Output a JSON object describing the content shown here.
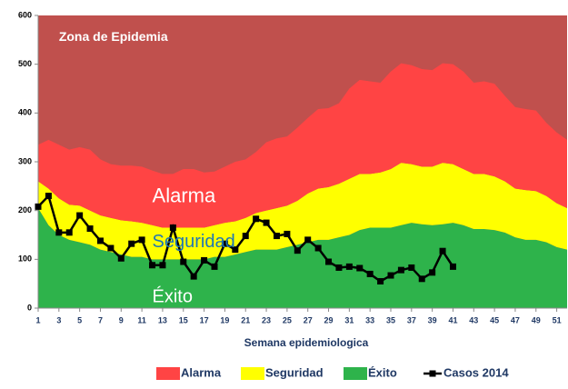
{
  "chart_data": {
    "type": "endemic-channel",
    "x_label": "Semana epidemiologica",
    "x": [
      1,
      2,
      3,
      4,
      5,
      6,
      7,
      8,
      9,
      10,
      11,
      12,
      13,
      14,
      15,
      16,
      17,
      18,
      19,
      20,
      21,
      22,
      23,
      24,
      25,
      26,
      27,
      28,
      29,
      30,
      31,
      32,
      33,
      34,
      35,
      36,
      37,
      38,
      39,
      40,
      41,
      42,
      43,
      44,
      45,
      46,
      47,
      48,
      49,
      50,
      51,
      52
    ],
    "xlim": [
      1,
      52
    ],
    "xticks": [
      1,
      3,
      5,
      7,
      9,
      11,
      13,
      15,
      17,
      19,
      21,
      23,
      25,
      27,
      29,
      31,
      33,
      35,
      37,
      39,
      41,
      43,
      45,
      47,
      49,
      51
    ],
    "ylim": [
      0,
      600
    ],
    "yticks": [
      0,
      100,
      200,
      300,
      400,
      500,
      600
    ],
    "plot_background": "#c0504d",
    "annotations": [
      "Zona de Epidemia",
      "Alarma",
      "Seguridad",
      "Éxito"
    ],
    "series": [
      {
        "name": "Éxito",
        "color": "#2eb34b",
        "kind": "area",
        "values": [
          205,
          170,
          150,
          140,
          135,
          130,
          120,
          115,
          110,
          105,
          105,
          100,
          100,
          100,
          100,
          100,
          100,
          105,
          105,
          110,
          115,
          120,
          120,
          120,
          125,
          130,
          135,
          140,
          140,
          145,
          150,
          160,
          165,
          165,
          165,
          170,
          175,
          172,
          170,
          172,
          175,
          170,
          162,
          162,
          160,
          155,
          145,
          140,
          140,
          135,
          125,
          120
        ]
      },
      {
        "name": "Seguridad",
        "color": "#ffff00",
        "kind": "area",
        "values": [
          55,
          75,
          75,
          72,
          75,
          70,
          70,
          70,
          70,
          73,
          70,
          70,
          65,
          65,
          65,
          65,
          65,
          65,
          70,
          68,
          70,
          75,
          80,
          85,
          85,
          90,
          100,
          105,
          108,
          110,
          115,
          115,
          110,
          113,
          120,
          128,
          120,
          118,
          120,
          126,
          120,
          115,
          113,
          113,
          110,
          105,
          100,
          102,
          100,
          95,
          90,
          85
        ]
      },
      {
        "name": "Alarma",
        "color": "#ff4444",
        "kind": "area",
        "values": [
          75,
          100,
          110,
          113,
          120,
          125,
          115,
          110,
          112,
          114,
          115,
          112,
          110,
          110,
          120,
          120,
          113,
          110,
          115,
          122,
          120,
          125,
          140,
          143,
          142,
          150,
          155,
          163,
          162,
          165,
          185,
          193,
          190,
          184,
          200,
          204,
          203,
          200,
          198,
          204,
          205,
          200,
          187,
          190,
          190,
          175,
          167,
          166,
          165,
          150,
          145,
          140
        ]
      },
      {
        "name": "Casos 2014",
        "color": "#000000",
        "kind": "line",
        "values": [
          208,
          230,
          155,
          155,
          190,
          163,
          138,
          123,
          102,
          132,
          140,
          88,
          88,
          165,
          95,
          65,
          98,
          85,
          132,
          120,
          148,
          183,
          175,
          148,
          152,
          118,
          140,
          123,
          95,
          83,
          85,
          82,
          70,
          55,
          67,
          78,
          83,
          60,
          73,
          117,
          85,
          null,
          null,
          null,
          null,
          null,
          null,
          null,
          null,
          null,
          null,
          null
        ]
      }
    ]
  }
}
